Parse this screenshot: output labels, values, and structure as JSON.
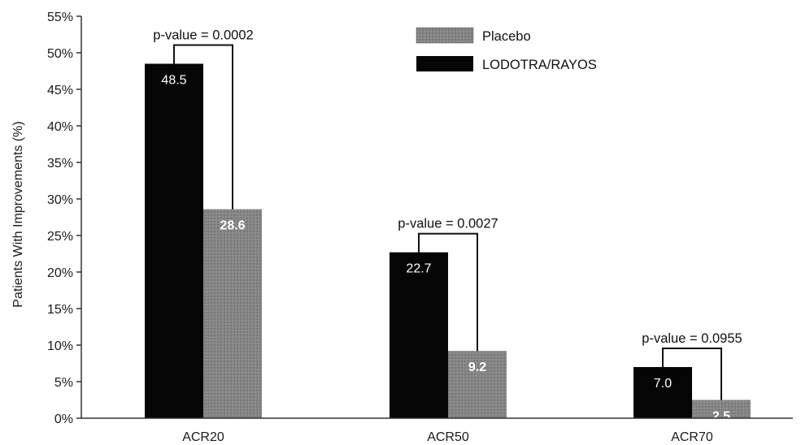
{
  "chart_data": {
    "type": "bar",
    "title": "",
    "xlabel": "",
    "ylabel": "Patients With Improvements (%)",
    "ylim": [
      0,
      55
    ],
    "yticks": [
      0,
      5,
      10,
      15,
      20,
      25,
      30,
      35,
      40,
      45,
      50,
      55
    ],
    "ytick_suffix": "%",
    "categories": [
      "ACR20",
      "ACR50",
      "ACR70"
    ],
    "series": [
      {
        "name": "LODOTRA/RAYOS",
        "values": [
          48.5,
          22.7,
          7.0
        ],
        "labels": [
          "48.5",
          "22.7",
          "7.0"
        ],
        "color": "#050505"
      },
      {
        "name": "Placebo",
        "values": [
          28.6,
          9.2,
          2.5
        ],
        "labels": [
          "28.6",
          "9.2",
          "2.5"
        ],
        "color": "#7e7e7e"
      }
    ],
    "annotations": [
      {
        "category": "ACR20",
        "text": "p-value = 0.0002"
      },
      {
        "category": "ACR50",
        "text": "p-value = 0.0027"
      },
      {
        "category": "ACR70",
        "text": "p-value = 0.0955"
      }
    ],
    "legend": {
      "position": "top-right",
      "order": [
        "Placebo",
        "LODOTRA/RAYOS"
      ]
    },
    "grid": false
  }
}
